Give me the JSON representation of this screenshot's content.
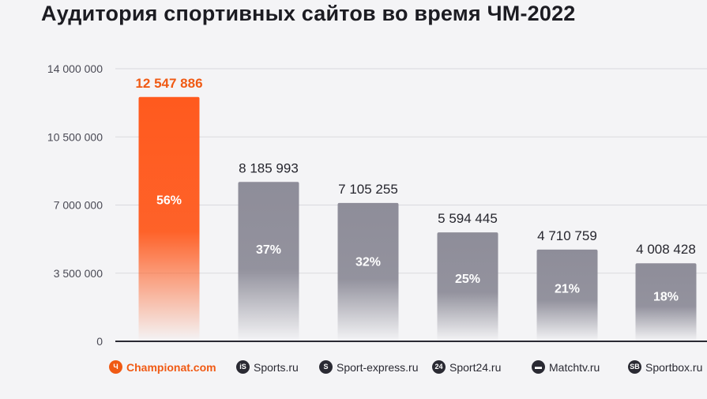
{
  "chart_data": {
    "type": "bar",
    "title": "Аудитория спортивных сайтов во время ЧМ-2022",
    "xlabel": "",
    "ylabel": "",
    "ylim": [
      0,
      14000000
    ],
    "y_ticks": [
      0,
      3500000,
      7000000,
      10500000,
      14000000
    ],
    "y_tick_labels": [
      "0",
      "3 500 000",
      "7 000 000",
      "10 500 000",
      "14 000 000"
    ],
    "grid": true,
    "categories": [
      "Championat.com",
      "Sports.ru",
      "Sport-express.ru",
      "Sport24.ru",
      "Matchtv.ru",
      "Sportbox.ru"
    ],
    "values": [
      12547886,
      8185993,
      7105255,
      5594445,
      4710759,
      4008428
    ],
    "value_labels": [
      "12 547 886",
      "8 185 993",
      "7 105 255",
      "5 594 445",
      "4 710 759",
      "4 008 428"
    ],
    "percent_labels": [
      "56%",
      "37%",
      "32%",
      "25%",
      "21%",
      "18%"
    ],
    "icons": [
      "championat-icon",
      "sports-ru-icon",
      "sport-express-icon",
      "sport24-icon",
      "matchtv-icon",
      "sportbox-icon"
    ],
    "highlight_index": 0,
    "colors": {
      "highlight": "#ff5a1e",
      "highlight_label": "#f05a14",
      "bar": "#8e8d99",
      "background": "#f4f4f6",
      "grid": "#d9d9de",
      "axis": "#2a2a33"
    }
  }
}
